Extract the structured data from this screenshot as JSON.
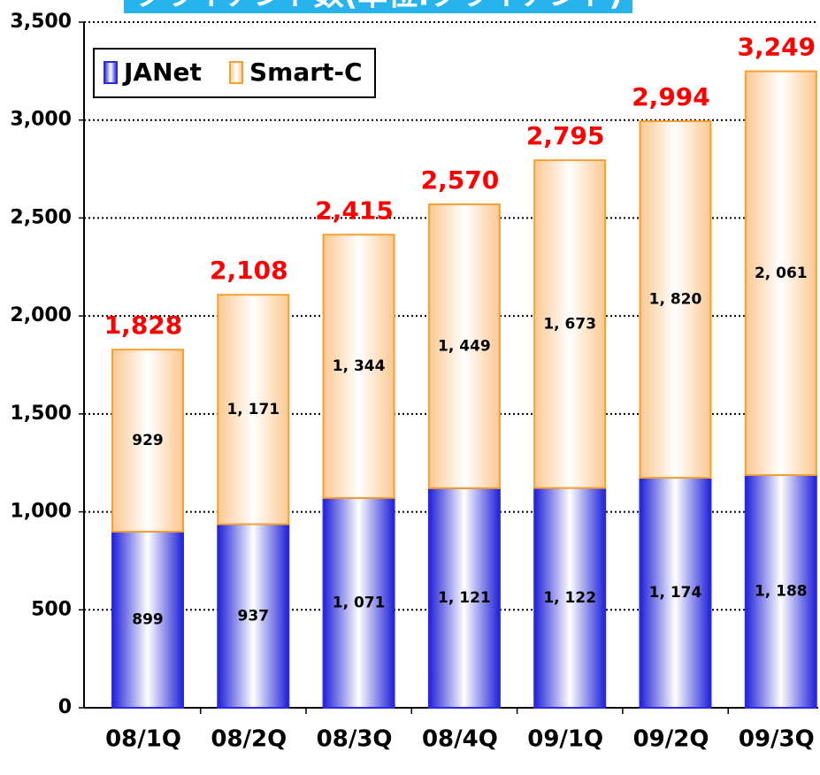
{
  "chart_data": {
    "type": "stacked_bar",
    "title": "クライアント数(単位:クライアント)",
    "categories": [
      "08/1Q",
      "08/2Q",
      "08/3Q",
      "08/4Q",
      "09/1Q",
      "09/2Q",
      "09/3Q"
    ],
    "series": [
      {
        "name": "JANet",
        "color": "#2a2ae0",
        "values": [
          899,
          937,
          1071,
          1121,
          1122,
          1174,
          1188
        ],
        "value_labels": [
          "899",
          "937",
          "1, 071",
          "1, 121",
          "1, 122",
          "1, 174",
          "1, 188"
        ]
      },
      {
        "name": "Smart-C",
        "color": "#f5a030",
        "values": [
          929,
          1171,
          1344,
          1449,
          1673,
          1820,
          2061
        ],
        "value_labels": [
          "929",
          "1, 171",
          "1, 344",
          "1, 449",
          "1, 673",
          "1, 820",
          "2, 061"
        ]
      }
    ],
    "totals": {
      "values": [
        1828,
        2108,
        2415,
        2570,
        2795,
        2994,
        3249
      ],
      "value_labels": [
        "1,828",
        "2,108",
        "2,415",
        "2,570",
        "2,795",
        "2,994",
        "3,249"
      ],
      "color": "#ff0000"
    },
    "ylim": [
      0,
      3500
    ],
    "yticks": [
      0,
      500,
      {
        "value": 1000,
        "label": "1,000"
      },
      {
        "value": 1500,
        "label": "1,500"
      },
      {
        "value": 2000,
        "label": "2,000"
      },
      {
        "value": 2500,
        "label": "2,500"
      },
      {
        "value": 3000,
        "label": "3,000"
      },
      {
        "value": 3500,
        "label": "3,500"
      }
    ],
    "grid": true,
    "legend": "top-left"
  }
}
